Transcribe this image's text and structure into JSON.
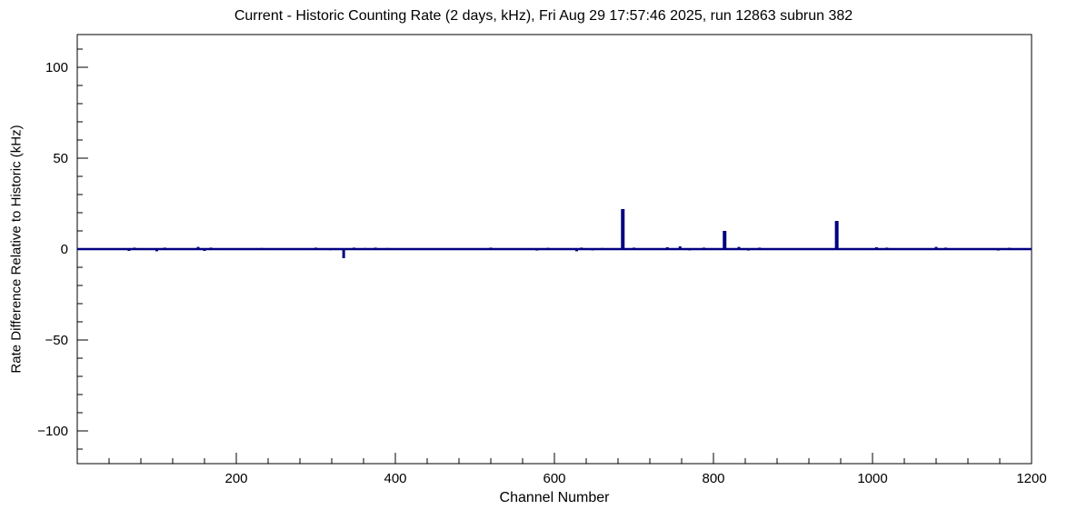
{
  "chart_data": {
    "type": "line",
    "title": "Current - Historic Counting Rate (2 days, kHz), Fri Aug 29 17:57:46 2025, run 12863 subrun 382",
    "xlabel": "Channel Number",
    "ylabel": "Rate Difference Relative to Historic (kHz)",
    "xlim": [
      0,
      1200
    ],
    "ylim": [
      -118,
      118
    ],
    "x_ticks": [
      200,
      400,
      600,
      800,
      1000,
      1200
    ],
    "x_minor_step": 40,
    "y_ticks": [
      -100,
      -50,
      0,
      50,
      100
    ],
    "y_minor_step": 10,
    "grid": false,
    "legend": "none",
    "line_color": "#000080",
    "frame_color": "#000000",
    "baseline": 0,
    "points_note": "pairs of [channel, rate_difference_kHz]; all unlisted channels are at 0",
    "points": [
      [
        65,
        -1.0
      ],
      [
        72,
        0.8
      ],
      [
        100,
        -1.2
      ],
      [
        110,
        0.8
      ],
      [
        152,
        1.2
      ],
      [
        160,
        -1.0
      ],
      [
        168,
        0.8
      ],
      [
        232,
        0.6
      ],
      [
        300,
        0.8
      ],
      [
        318,
        -0.6
      ],
      [
        335,
        -5.0
      ],
      [
        348,
        0.8
      ],
      [
        362,
        0.6
      ],
      [
        375,
        0.8
      ],
      [
        390,
        0.6
      ],
      [
        520,
        0.8
      ],
      [
        578,
        -0.8
      ],
      [
        592,
        0.7
      ],
      [
        628,
        -1.2
      ],
      [
        634,
        0.8
      ],
      [
        648,
        -0.7
      ],
      [
        660,
        0.6
      ],
      [
        686,
        22.0
      ],
      [
        700,
        0.8
      ],
      [
        742,
        1.0
      ],
      [
        758,
        1.5
      ],
      [
        770,
        -0.7
      ],
      [
        788,
        0.8
      ],
      [
        814,
        10.0
      ],
      [
        832,
        1.2
      ],
      [
        844,
        -0.8
      ],
      [
        858,
        0.8
      ],
      [
        955,
        15.5
      ],
      [
        1005,
        1.0
      ],
      [
        1018,
        0.8
      ],
      [
        1080,
        1.2
      ],
      [
        1092,
        0.8
      ],
      [
        1158,
        -0.8
      ],
      [
        1172,
        0.7
      ]
    ]
  }
}
